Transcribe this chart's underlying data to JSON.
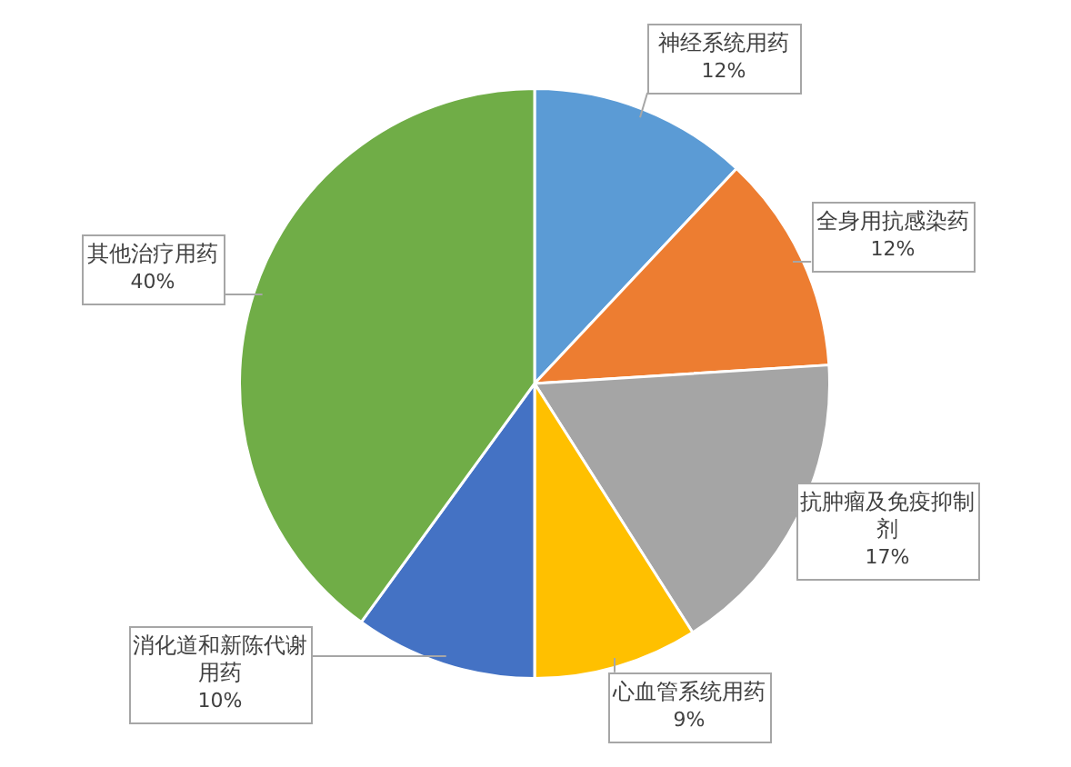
{
  "chart_data": {
    "type": "pie",
    "categories": [
      "神经系统用药",
      "全身用抗感染药",
      "抗肿瘤及免疫抑制剂",
      "心血管系统用药",
      "消化道和新陈代谢用药",
      "其他治疗用药"
    ],
    "values": [
      12,
      12,
      17,
      9,
      10,
      40
    ],
    "value_labels": [
      "12%",
      "12%",
      "17%",
      "9%",
      "10%",
      "40%"
    ],
    "colors": [
      "#5b9bd5",
      "#ed7d31",
      "#a5a5a5",
      "#ffc000",
      "#4472c4",
      "#70ad47"
    ],
    "legend": false
  }
}
